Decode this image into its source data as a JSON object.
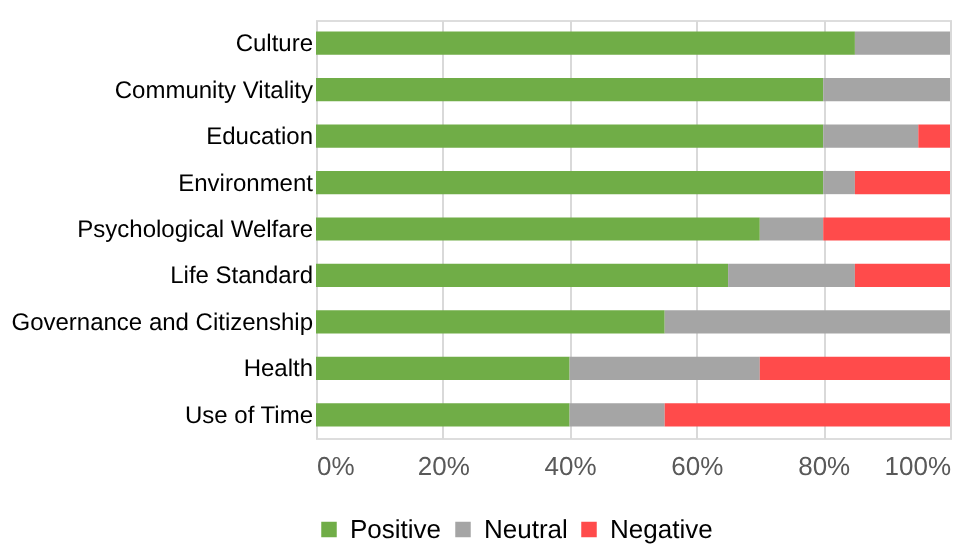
{
  "chart_data": {
    "type": "bar",
    "orientation": "horizontal",
    "stacked": true,
    "categories": [
      "Culture",
      "Community Vitality",
      "Education",
      "Environment",
      "Psychological Welfare",
      "Life Standard",
      "Governance and Citizenship",
      "Health",
      "Use of Time"
    ],
    "series": [
      {
        "name": "Positive",
        "color": "#70ad47",
        "values": [
          85,
          80,
          80,
          80,
          70,
          65,
          55,
          40,
          40
        ]
      },
      {
        "name": "Neutral",
        "color": "#a5a5a5",
        "values": [
          15,
          20,
          15,
          5,
          10,
          20,
          45,
          30,
          15
        ]
      },
      {
        "name": "Negative",
        "color": "#ff4b4b",
        "values": [
          0,
          0,
          5,
          15,
          20,
          15,
          0,
          30,
          45
        ]
      }
    ],
    "xlim": [
      0,
      100
    ],
    "xticks": [
      {
        "value": 0,
        "label": "0%"
      },
      {
        "value": 20,
        "label": "20%"
      },
      {
        "value": 40,
        "label": "40%"
      },
      {
        "value": 60,
        "label": "60%"
      },
      {
        "value": 80,
        "label": "80%"
      },
      {
        "value": 100,
        "label": "100%"
      }
    ],
    "grid": "x",
    "legend": "bottom"
  }
}
